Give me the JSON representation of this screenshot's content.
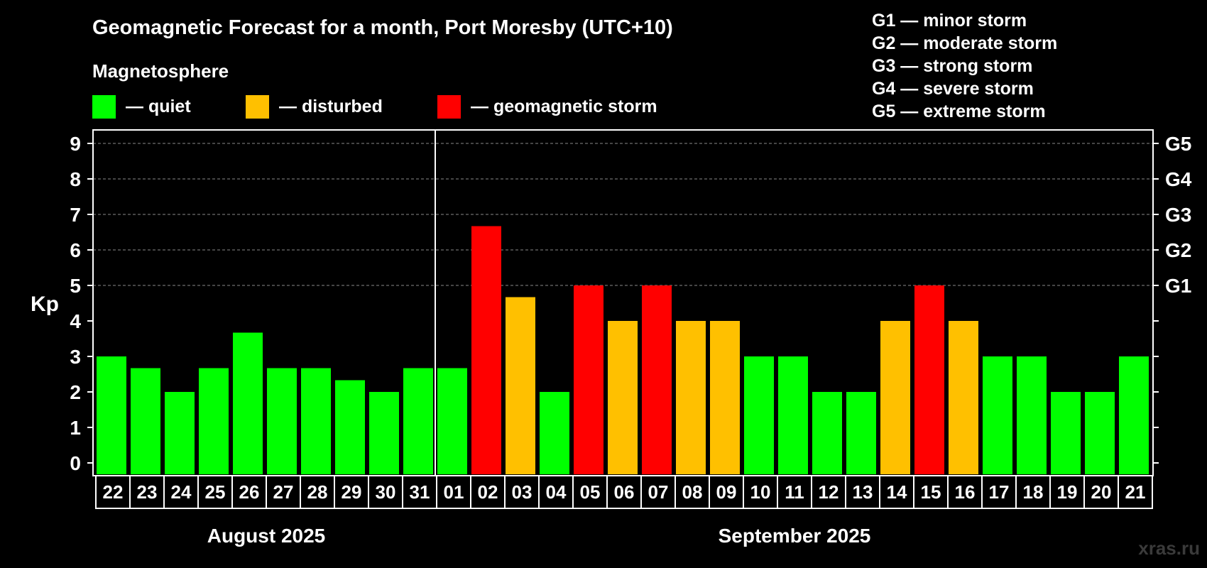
{
  "chart_data": {
    "type": "bar",
    "title": "Geomagnetic Forecast for a month, Port Moresby (UTC+10)",
    "ylabel": "Kp",
    "ylim": [
      0,
      9
    ],
    "yticks": [
      "0",
      "1",
      "2",
      "3",
      "4",
      "5",
      "6",
      "7",
      "8",
      "9"
    ],
    "storm_levels": [
      {
        "label": "G1",
        "kp": 5
      },
      {
        "label": "G2",
        "kp": 6
      },
      {
        "label": "G3",
        "kp": 7
      },
      {
        "label": "G4",
        "kp": 8
      },
      {
        "label": "G5",
        "kp": 9
      }
    ],
    "legend": {
      "title": "Magnetosphere",
      "items": [
        {
          "label": "— quiet",
          "color": "#00FF00"
        },
        {
          "label": "— disturbed",
          "color": "#FFC000"
        },
        {
          "label": "— geomagnetic storm",
          "color": "#FF0000"
        }
      ]
    },
    "g_scale": [
      "G1 — minor storm",
      "G2 — moderate storm",
      "G3 — strong storm",
      "G4 — severe storm",
      "G5 — extreme storm"
    ],
    "categories": [
      "22",
      "23",
      "24",
      "25",
      "26",
      "27",
      "28",
      "29",
      "30",
      "31",
      "01",
      "02",
      "03",
      "04",
      "05",
      "06",
      "07",
      "08",
      "09",
      "10",
      "11",
      "12",
      "13",
      "14",
      "15",
      "16",
      "17",
      "18",
      "19",
      "20",
      "21"
    ],
    "values": [
      3,
      2.67,
      2,
      2.67,
      3.67,
      2.67,
      2.67,
      2.33,
      2,
      2.67,
      2.67,
      6.67,
      4.67,
      2,
      5,
      4,
      5,
      4,
      4,
      3,
      3,
      2,
      2,
      4,
      5,
      4,
      3,
      3,
      2,
      2,
      3
    ],
    "status": [
      "quiet",
      "quiet",
      "quiet",
      "quiet",
      "quiet",
      "quiet",
      "quiet",
      "quiet",
      "quiet",
      "quiet",
      "quiet",
      "storm",
      "disturbed",
      "quiet",
      "storm",
      "disturbed",
      "storm",
      "disturbed",
      "disturbed",
      "quiet",
      "quiet",
      "quiet",
      "quiet",
      "disturbed",
      "storm",
      "disturbed",
      "quiet",
      "quiet",
      "quiet",
      "quiet",
      "quiet"
    ],
    "status_colors": {
      "quiet": "#00FF00",
      "disturbed": "#FFC000",
      "storm": "#FF0000"
    },
    "months": [
      {
        "label": "August 2025",
        "first_index": 0,
        "last_index": 9
      },
      {
        "label": "September 2025",
        "first_index": 10,
        "last_index": 30
      }
    ],
    "month_divider_after_index": 9
  },
  "watermark": "xras.ru"
}
